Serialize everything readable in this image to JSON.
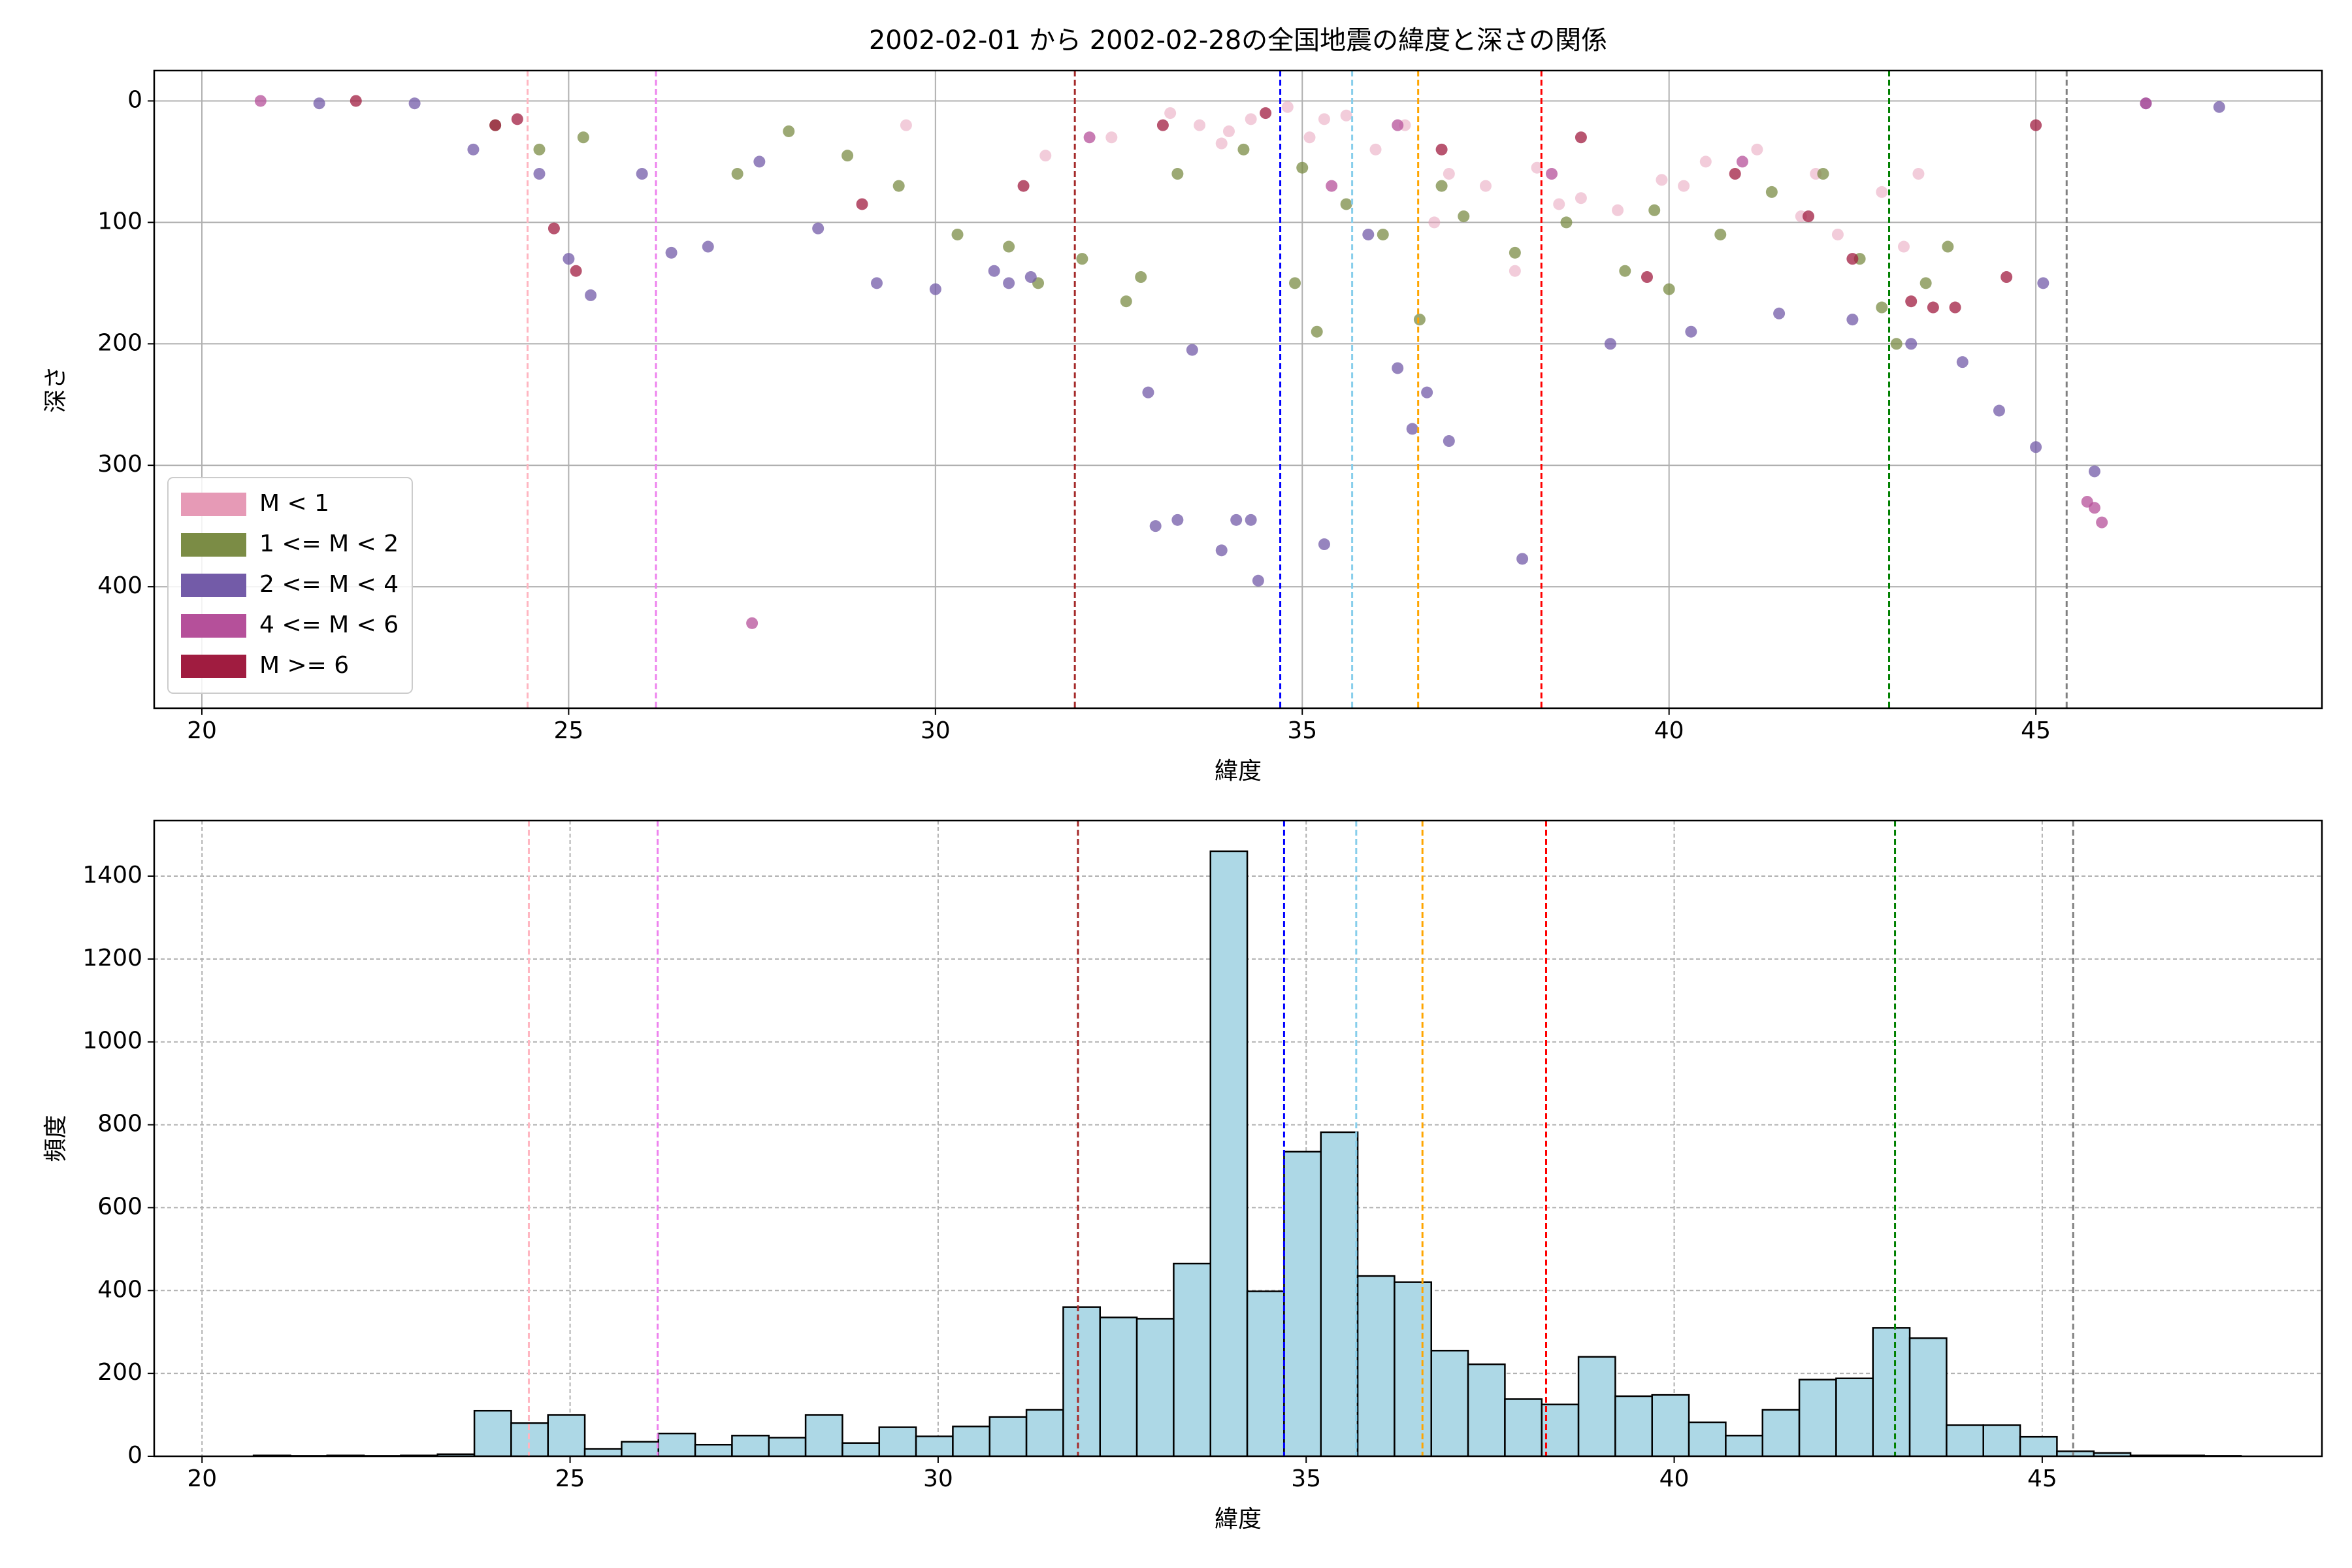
{
  "chart_data": [
    {
      "type": "scatter",
      "title": "2002-02-01 から 2002-02-28の全国地震の緯度と深さの関係",
      "x_label": "緯度",
      "y_label": "深さ",
      "xlim": [
        19.35,
        48.9
      ],
      "ylim": [
        -25,
        500
      ],
      "y_inverted": true,
      "xticks": [
        20,
        25,
        30,
        35,
        40,
        45
      ],
      "yticks": [
        0,
        100,
        200,
        300,
        400
      ],
      "grid": true,
      "legend_position": "lower left",
      "vlines": [
        {
          "x": 24.44,
          "color": "#ffb6c1"
        },
        {
          "x": 26.19,
          "color": "#ee82ee"
        },
        {
          "x": 31.9,
          "color": "#a52a2a"
        },
        {
          "x": 34.7,
          "color": "#0000ff"
        },
        {
          "x": 35.68,
          "color": "#87ceeb"
        },
        {
          "x": 36.58,
          "color": "#ffa500"
        },
        {
          "x": 38.26,
          "color": "#ff0000"
        },
        {
          "x": 43.0,
          "color": "#008000"
        },
        {
          "x": 45.42,
          "color": "#808080"
        }
      ],
      "series": [
        {
          "name": "M < 1",
          "color": "#e69ab6",
          "x": [
            33.2,
            33.6,
            34.0,
            34.3,
            34.8,
            35.1,
            35.6,
            36.0,
            36.4,
            37.0,
            37.5,
            38.2,
            38.8,
            39.3,
            39.9,
            40.5,
            41.2,
            41.8,
            42.3,
            42.9,
            43.4,
            31.5,
            32.4,
            29.6,
            35.3,
            36.8,
            38.5,
            40.2,
            42.0,
            43.2,
            33.9,
            37.9
          ],
          "values": [
            10,
            20,
            25,
            15,
            5,
            30,
            12,
            40,
            20,
            60,
            70,
            55,
            80,
            90,
            65,
            50,
            40,
            95,
            110,
            75,
            60,
            45,
            30,
            20,
            15,
            100,
            85,
            70,
            60,
            120,
            35,
            140
          ]
        },
        {
          "name": "1 <= M < 2",
          "color": "#7b8c45",
          "x": [
            24.0,
            24.6,
            25.2,
            27.3,
            28.0,
            28.8,
            29.5,
            30.3,
            31.0,
            31.4,
            32.0,
            32.6,
            33.3,
            34.2,
            34.9,
            35.2,
            35.6,
            36.1,
            36.6,
            37.2,
            37.9,
            38.6,
            39.4,
            40.0,
            40.7,
            41.4,
            42.1,
            42.6,
            43.1,
            43.5,
            43.8,
            32.8,
            35.0,
            36.9,
            39.8,
            42.9
          ],
          "values": [
            20,
            40,
            30,
            60,
            25,
            45,
            70,
            110,
            120,
            150,
            130,
            165,
            60,
            40,
            150,
            190,
            85,
            110,
            180,
            95,
            125,
            100,
            140,
            155,
            110,
            75,
            60,
            130,
            200,
            150,
            120,
            145,
            55,
            70,
            90,
            170
          ]
        },
        {
          "name": "2 <= M < 4",
          "color": "#735ba8",
          "x": [
            23.7,
            24.6,
            25.0,
            25.3,
            26.0,
            26.4,
            26.9,
            27.6,
            28.4,
            29.2,
            30.0,
            30.8,
            31.0,
            31.3,
            32.9,
            33.0,
            33.3,
            33.5,
            33.9,
            34.1,
            34.3,
            34.4,
            35.3,
            35.9,
            36.3,
            36.5,
            37.0,
            38.0,
            39.2,
            40.3,
            41.5,
            42.5,
            43.3,
            44.0,
            44.5,
            45.0,
            45.1,
            45.8,
            46.5,
            47.5,
            21.6,
            22.9,
            36.7
          ],
          "values": [
            40,
            60,
            130,
            160,
            60,
            125,
            120,
            50,
            105,
            150,
            155,
            140,
            150,
            145,
            240,
            350,
            345,
            205,
            370,
            345,
            345,
            395,
            365,
            110,
            220,
            270,
            280,
            377,
            200,
            190,
            175,
            180,
            200,
            215,
            255,
            285,
            150,
            305,
            2,
            5,
            2,
            2,
            240
          ]
        },
        {
          "name": "4 <= M < 6",
          "color": "#b5509a",
          "x": [
            20.8,
            27.5,
            35.4,
            38.4,
            45.7,
            45.8,
            45.9,
            46.5,
            32.1,
            36.3,
            41.0
          ],
          "values": [
            0,
            430,
            70,
            60,
            330,
            335,
            347,
            2,
            30,
            20,
            50
          ]
        },
        {
          "name": "M >= 6",
          "color": "#a01c40",
          "x": [
            22.1,
            24.0,
            24.8,
            25.1,
            29.0,
            31.2,
            33.1,
            34.5,
            36.9,
            38.8,
            39.7,
            41.9,
            43.3,
            43.6,
            43.9,
            44.6,
            45.0,
            24.3,
            40.9,
            42.5
          ],
          "values": [
            0,
            20,
            105,
            140,
            85,
            70,
            20,
            10,
            40,
            30,
            145,
            95,
            165,
            170,
            170,
            145,
            20,
            15,
            60,
            130
          ]
        }
      ]
    },
    {
      "type": "histogram",
      "x_label": "緯度",
      "y_label": "頻度",
      "xlim": [
        19.35,
        48.8
      ],
      "ylim": [
        0,
        1534
      ],
      "xticks": [
        20,
        25,
        30,
        35,
        40,
        45
      ],
      "yticks": [
        0,
        200,
        400,
        600,
        800,
        1000,
        1200,
        1400
      ],
      "grid": true,
      "grid_dashed": true,
      "color": "#add8e6",
      "edgecolor": "#000000",
      "vlines": [
        {
          "x": 24.44,
          "color": "#ffb6c1"
        },
        {
          "x": 26.19,
          "color": "#ee82ee"
        },
        {
          "x": 31.9,
          "color": "#a52a2a"
        },
        {
          "x": 34.7,
          "color": "#0000ff"
        },
        {
          "x": 35.68,
          "color": "#87ceeb"
        },
        {
          "x": 36.58,
          "color": "#ffa500"
        },
        {
          "x": 38.26,
          "color": "#ff0000"
        },
        {
          "x": 43.0,
          "color": "#008000"
        },
        {
          "x": 45.42,
          "color": "#808080"
        }
      ],
      "bins": [
        20.7,
        21.2,
        21.7,
        22.2,
        22.7,
        23.2,
        23.7,
        24.2,
        24.7,
        25.2,
        25.7,
        26.2,
        26.7,
        27.2,
        27.7,
        28.2,
        28.7,
        29.2,
        29.7,
        30.2,
        30.7,
        31.2,
        31.7,
        32.2,
        32.7,
        33.2,
        33.7,
        34.2,
        34.7,
        35.2,
        35.7,
        36.2,
        36.7,
        37.2,
        37.7,
        38.2,
        38.7,
        39.2,
        39.7,
        40.2,
        40.7,
        41.2,
        41.7,
        42.2,
        42.7,
        43.2,
        43.7,
        44.2,
        44.7,
        45.2,
        45.7,
        46.2,
        46.7,
        47.2,
        47.7
      ],
      "values": [
        2,
        1,
        2,
        1,
        2,
        5,
        110,
        80,
        100,
        18,
        35,
        55,
        28,
        50,
        45,
        100,
        32,
        70,
        48,
        72,
        95,
        112,
        360,
        335,
        332,
        465,
        1460,
        398,
        735,
        782,
        435,
        420,
        255,
        222,
        138,
        125,
        240,
        145,
        148,
        82,
        50,
        112,
        185,
        188,
        310,
        285,
        75,
        75,
        47,
        12,
        8,
        2,
        2,
        1
      ]
    }
  ]
}
